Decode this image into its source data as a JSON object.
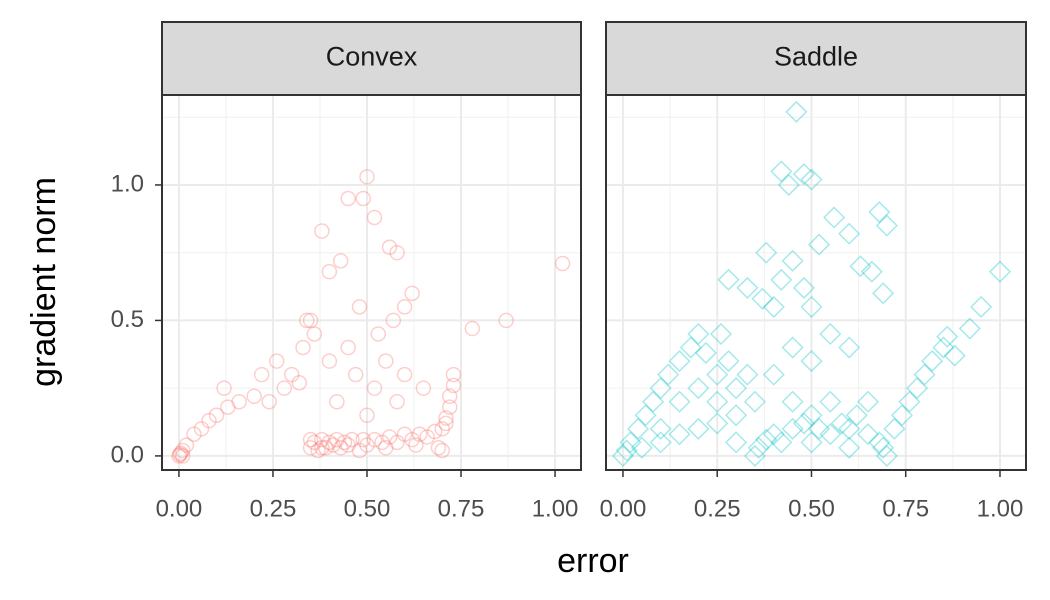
{
  "chart_data": {
    "type": "scatter",
    "x_label": "error",
    "y_label": "gradient norm",
    "grid": true,
    "xlim": [
      -0.045,
      1.069
    ],
    "ylim": [
      -0.052,
      1.332
    ],
    "xticks": [
      {
        "value": 0,
        "label": "0.00"
      },
      {
        "value": 0.25,
        "label": "0.25"
      },
      {
        "value": 0.5,
        "label": "0.50"
      },
      {
        "value": 0.75,
        "label": "0.75"
      },
      {
        "value": 1,
        "label": "1.00"
      }
    ],
    "yticks": [
      {
        "value": 0,
        "label": "0.0"
      },
      {
        "value": 0.5,
        "label": "0.5"
      },
      {
        "value": 1,
        "label": "1.0"
      }
    ],
    "x_minor_ticks": [
      0.125,
      0.375,
      0.625,
      0.875
    ],
    "y_minor_ticks": [
      0.25,
      0.75,
      1.25
    ],
    "series": [
      {
        "name": "Convex",
        "color": "#f8766d",
        "marker": "circle",
        "x": [
          0,
          0.005,
          0.01,
          0.003,
          0.02,
          0.01,
          0.04,
          0.06,
          0.08,
          0.1,
          0.13,
          0.16,
          0.2,
          0.24,
          0.28,
          0.3,
          0.12,
          0.22,
          0.26,
          0.32,
          0.33,
          0.36,
          0.34,
          0.35,
          0.36,
          0.37,
          0.38,
          0.39,
          0.4,
          0.41,
          0.42,
          0.43,
          0.44,
          0.45,
          0.46,
          0.35,
          0.38,
          0.48,
          0.5,
          0.52,
          0.54,
          0.56,
          0.58,
          0.6,
          0.62,
          0.64,
          0.66,
          0.68,
          0.69,
          0.7,
          0.7,
          0.49,
          0.55,
          0.63,
          0.71,
          0.72,
          0.72,
          0.73,
          0.73,
          0.71,
          0.5,
          0.52,
          0.55,
          0.58,
          0.6,
          0.47,
          0.42,
          0.4,
          0.65,
          0.53,
          0.57,
          0.45,
          0.48,
          0.6,
          0.5,
          0.49,
          0.45,
          0.52,
          0.38,
          0.56,
          0.58,
          0.43,
          0.4,
          1.02,
          0.87,
          0.78,
          0.62,
          0.35
        ],
        "y": [
          0,
          0.01,
          0.02,
          0.005,
          0.04,
          0,
          0.08,
          0.1,
          0.13,
          0.15,
          0.18,
          0.2,
          0.22,
          0.2,
          0.25,
          0.3,
          0.25,
          0.3,
          0.35,
          0.27,
          0.4,
          0.45,
          0.5,
          0.03,
          0.05,
          0.02,
          0.06,
          0.03,
          0.05,
          0.04,
          0.06,
          0.03,
          0.05,
          0.04,
          0.06,
          0.06,
          0.03,
          0.02,
          0.04,
          0.06,
          0.05,
          0.07,
          0.05,
          0.08,
          0.06,
          0.08,
          0.07,
          0.09,
          0.03,
          0.1,
          0.02,
          0.06,
          0.03,
          0.04,
          0.14,
          0.18,
          0.22,
          0.26,
          0.3,
          0.12,
          0.15,
          0.25,
          0.35,
          0.2,
          0.3,
          0.3,
          0.2,
          0.35,
          0.25,
          0.45,
          0.5,
          0.4,
          0.55,
          0.55,
          1.03,
          0.95,
          0.95,
          0.88,
          0.83,
          0.77,
          0.75,
          0.72,
          0.68,
          0.71,
          0.5,
          0.47,
          0.6,
          0.5
        ]
      },
      {
        "name": "Saddle",
        "color": "#00bfc4",
        "marker": "diamond",
        "x": [
          0,
          0.01,
          0.02,
          0.04,
          0.06,
          0.08,
          0.1,
          0.05,
          0.1,
          0.15,
          0.2,
          0.25,
          0.3,
          0.12,
          0.15,
          0.18,
          0.2,
          0.22,
          0.25,
          0.28,
          0.3,
          0.33,
          0.35,
          0.36,
          0.38,
          0.4,
          0.42,
          0.45,
          0.48,
          0.5,
          0.52,
          0.55,
          0.58,
          0.6,
          0.62,
          0.65,
          0.68,
          0.7,
          0.69,
          0.72,
          0.74,
          0.76,
          0.78,
          0.8,
          0.82,
          0.85,
          0.86,
          0.88,
          0.92,
          0.95,
          1.0,
          0.4,
          0.45,
          0.5,
          0.55,
          0.6,
          0.4,
          0.42,
          0.45,
          0.48,
          0.52,
          0.56,
          0.6,
          0.63,
          0.66,
          0.68,
          0.69,
          0.7,
          0.37,
          0.38,
          0.44,
          0.46,
          0.48,
          0.5,
          0.42,
          0.33,
          0.26,
          0.28,
          0.5,
          0.2,
          0.15,
          0.25,
          0.35,
          0.45,
          0.55,
          0.65,
          0.1,
          0.3,
          0.5,
          0.6
        ],
        "y": [
          0,
          0.02,
          0.05,
          0.1,
          0.15,
          0.2,
          0.25,
          0.03,
          0.05,
          0.08,
          0.1,
          0.12,
          0.15,
          0.3,
          0.35,
          0.4,
          0.45,
          0.38,
          0.3,
          0.35,
          0.25,
          0.3,
          0,
          0.03,
          0.06,
          0.08,
          0.05,
          0.1,
          0.12,
          0.15,
          0.1,
          0.08,
          0.12,
          0.1,
          0.15,
          0.08,
          0.05,
          0,
          0.03,
          0.1,
          0.15,
          0.2,
          0.25,
          0.3,
          0.35,
          0.4,
          0.44,
          0.37,
          0.47,
          0.55,
          0.68,
          0.3,
          0.4,
          0.35,
          0.45,
          0.4,
          0.55,
          0.65,
          0.72,
          0.62,
          0.78,
          0.88,
          0.82,
          0.7,
          0.68,
          0.9,
          0.6,
          0.85,
          0.58,
          0.75,
          1.0,
          1.27,
          1.04,
          1.02,
          1.05,
          0.62,
          0.45,
          0.65,
          0.55,
          0.25,
          0.2,
          0.2,
          0.2,
          0.2,
          0.2,
          0.2,
          0.1,
          0.05,
          0.05,
          0.03
        ]
      }
    ]
  }
}
